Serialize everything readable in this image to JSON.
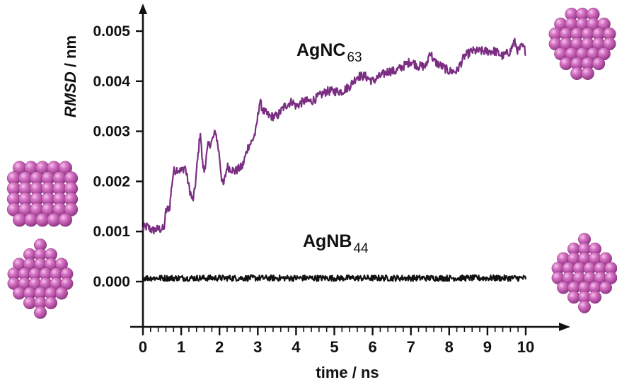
{
  "chart_data": {
    "type": "line",
    "xlabel": "time / ns",
    "ylabel": {
      "italic": "RMSD",
      "rest": " / nm"
    },
    "xlim": [
      0,
      10
    ],
    "ylim": [
      -0.0009,
      0.0054
    ],
    "xticks": [
      "0",
      "1",
      "2",
      "3",
      "4",
      "5",
      "6",
      "7",
      "8",
      "9",
      "10"
    ],
    "yticks": [
      "0.000",
      "0.001",
      "0.002",
      "0.003",
      "0.004",
      "0.005"
    ],
    "series": [
      {
        "name": "AgNC63",
        "label_main": "AgNC",
        "label_sub": "63",
        "color": "#7b2d82",
        "x": [
          0,
          0.1,
          0.25,
          0.4,
          0.55,
          0.6,
          0.7,
          0.75,
          0.8,
          0.9,
          1.0,
          1.1,
          1.2,
          1.3,
          1.35,
          1.4,
          1.5,
          1.55,
          1.6,
          1.7,
          1.8,
          1.9,
          2.0,
          2.05,
          2.1,
          2.2,
          2.4,
          2.6,
          2.75,
          2.85,
          2.95,
          3.05,
          3.15,
          3.3,
          3.5,
          3.7,
          3.9,
          4.0,
          4.2,
          4.4,
          4.6,
          4.8,
          5.0,
          5.2,
          5.4,
          5.6,
          5.8,
          6.0,
          6.2,
          6.4,
          6.6,
          6.8,
          7.0,
          7.2,
          7.4,
          7.5,
          7.6,
          7.8,
          8.0,
          8.2,
          8.4,
          8.6,
          8.8,
          9.0,
          9.2,
          9.4,
          9.6,
          9.7,
          9.8,
          9.9,
          10.0
        ],
        "y": [
          0.00105,
          0.0011,
          0.00102,
          0.00105,
          0.00105,
          0.0014,
          0.0015,
          0.0019,
          0.0022,
          0.00225,
          0.0022,
          0.0023,
          0.0019,
          0.0016,
          0.0018,
          0.0022,
          0.003,
          0.0024,
          0.0022,
          0.0027,
          0.0028,
          0.003,
          0.0025,
          0.0021,
          0.0019,
          0.0023,
          0.0022,
          0.0023,
          0.0027,
          0.0028,
          0.003,
          0.0036,
          0.0034,
          0.0033,
          0.0033,
          0.0035,
          0.0036,
          0.0035,
          0.0036,
          0.0036,
          0.0037,
          0.0038,
          0.0038,
          0.0038,
          0.0039,
          0.0041,
          0.0041,
          0.004,
          0.0041,
          0.0042,
          0.0042,
          0.0043,
          0.0044,
          0.0043,
          0.0043,
          0.0046,
          0.0044,
          0.0043,
          0.0042,
          0.0042,
          0.0045,
          0.0046,
          0.0046,
          0.0046,
          0.0046,
          0.0045,
          0.0046,
          0.0048,
          0.0046,
          0.0047,
          0.0046
        ]
      },
      {
        "name": "AgNB44",
        "label_main": "AgNB",
        "label_sub": "44",
        "color": "#111111",
        "x": [
          0,
          10
        ],
        "y": [
          7e-05,
          7e-05
        ]
      }
    ],
    "grid": false,
    "legend": "none"
  }
}
